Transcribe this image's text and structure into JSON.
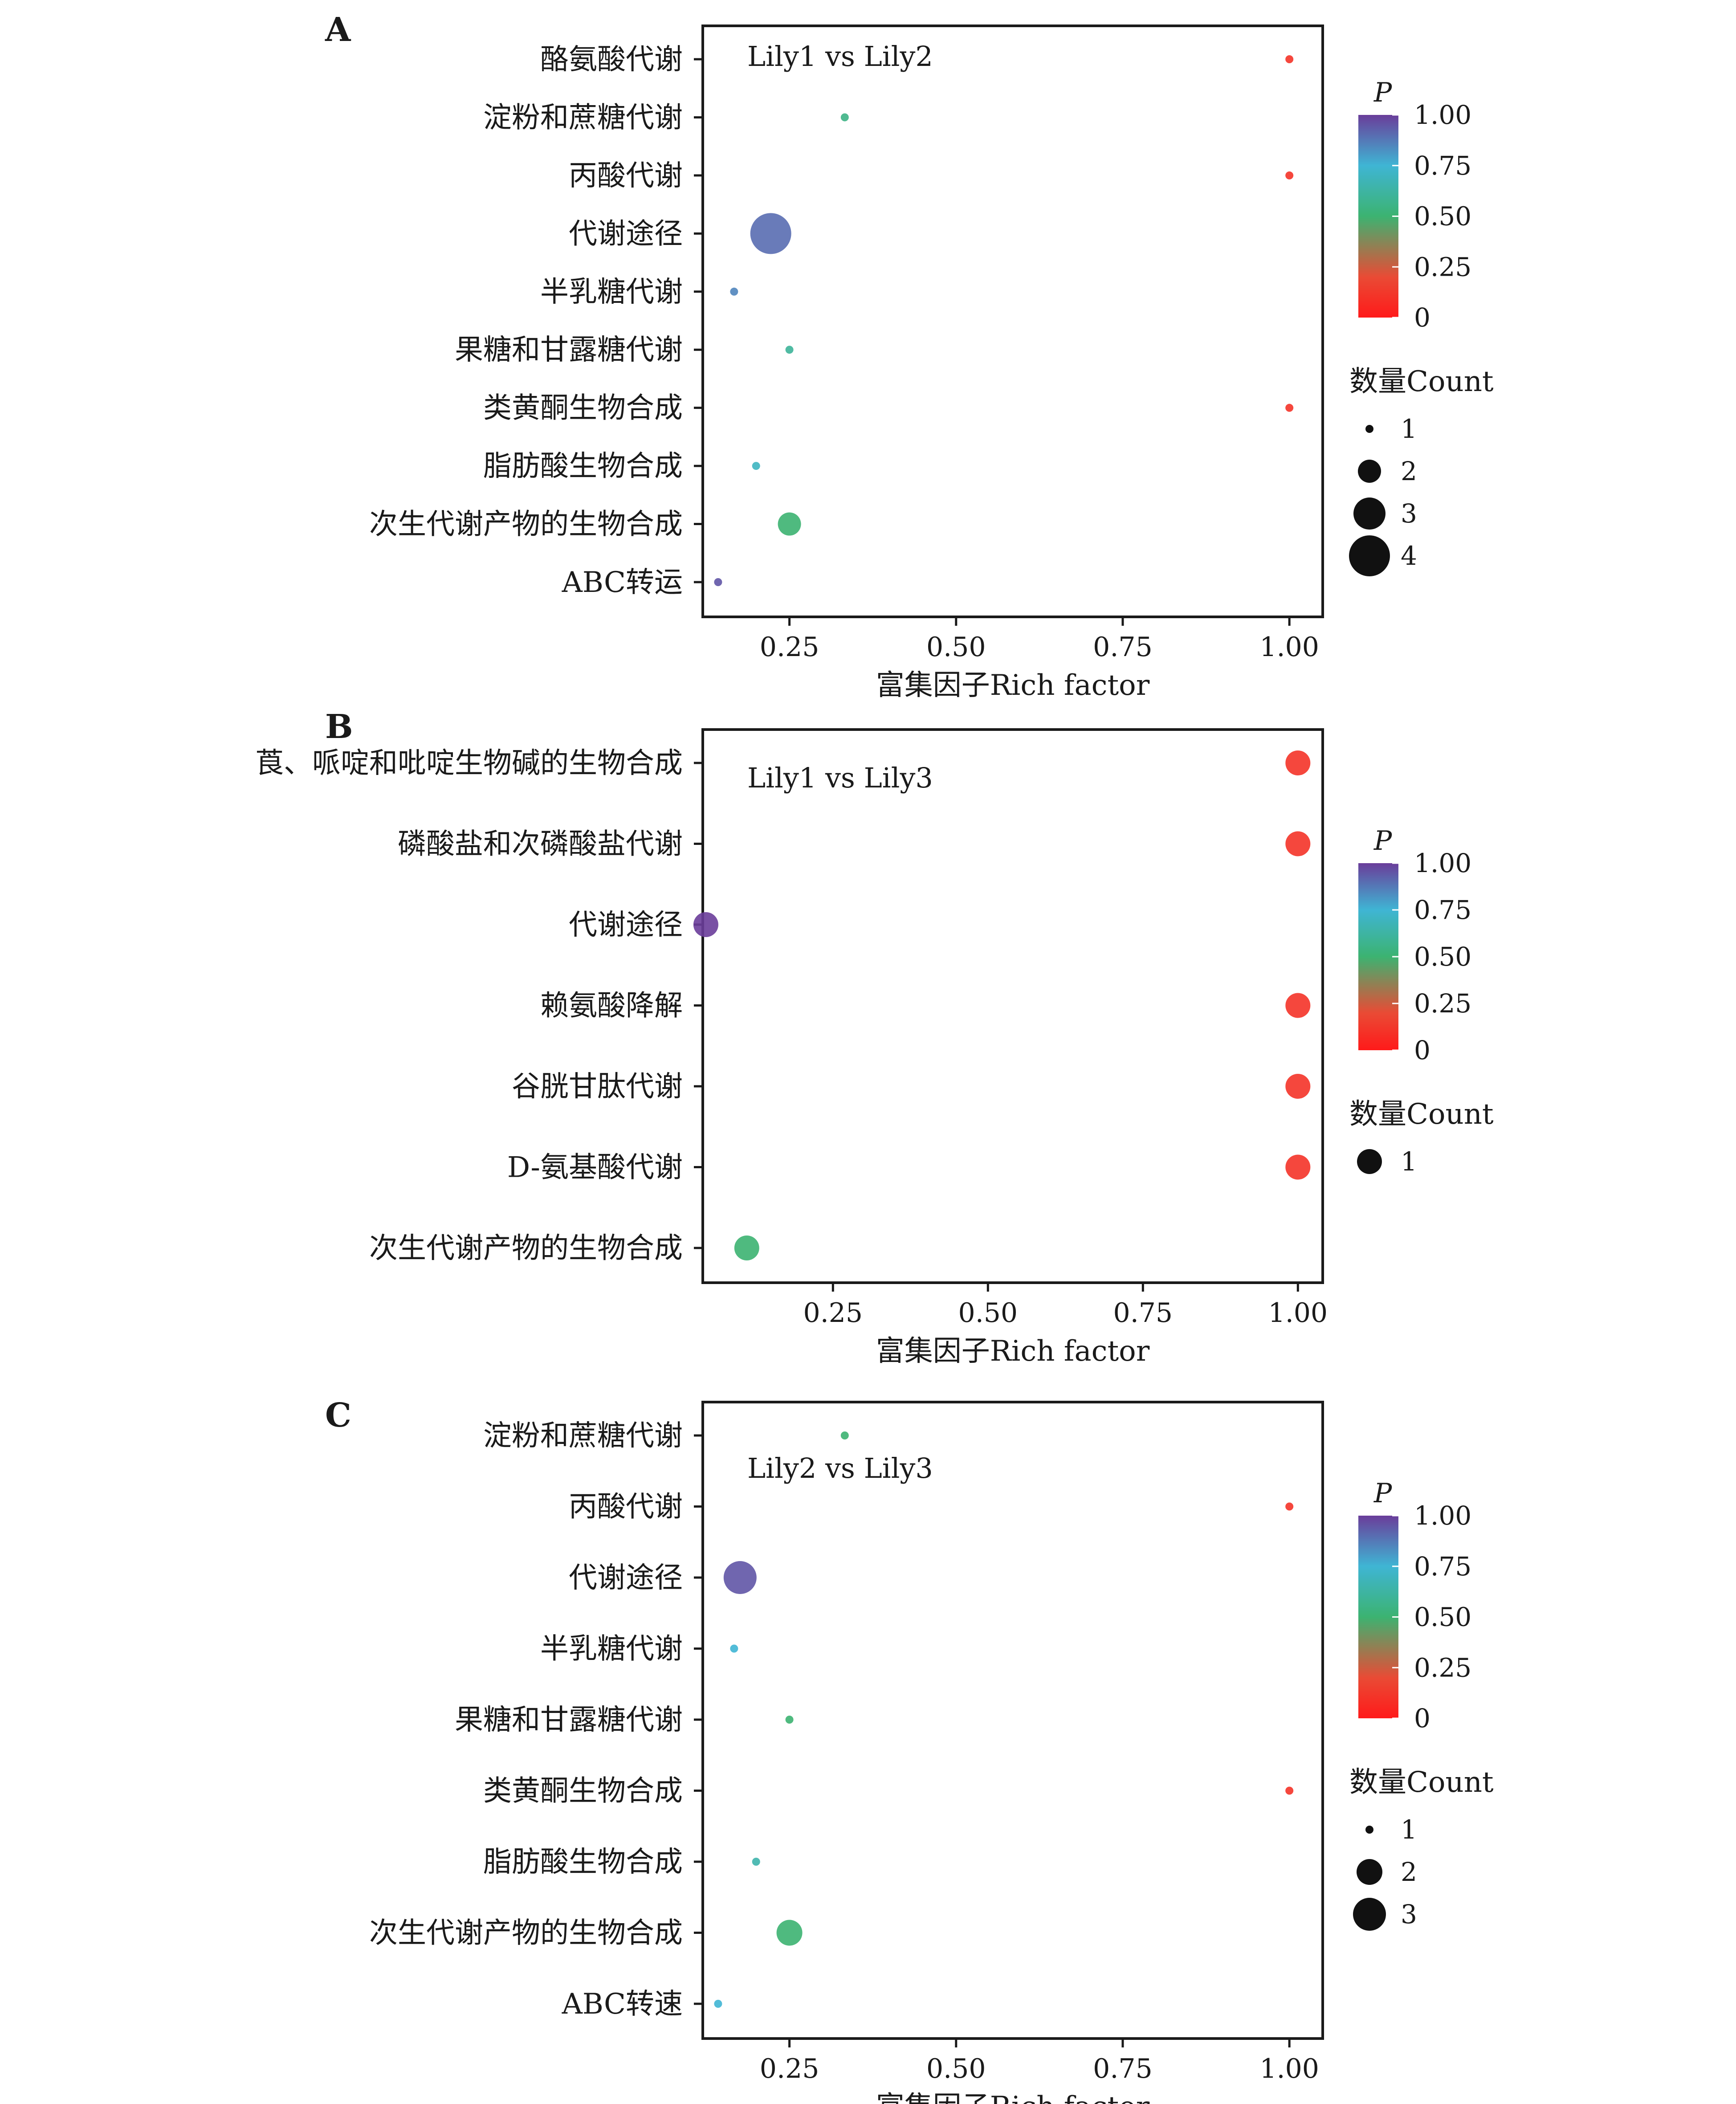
{
  "x_axis_title": "富集因子Rich factor",
  "colorbar": {
    "title": "P",
    "ticks": [
      "1.00",
      "0.75",
      "0.50",
      "0.25",
      "0"
    ],
    "colors": [
      "#6a3d9a",
      "#3fb5d4",
      "#3cb371",
      "#e94b35",
      "#ff1a1a"
    ]
  },
  "size_legend_title": "数量Count",
  "chart_data": [
    {
      "type": "scatter",
      "panel_label": "A",
      "title": "Lily1 vs Lily2",
      "xlabel": "富集因子Rich factor",
      "xlim": [
        0.12,
        1.05
      ],
      "xticks": [
        "0.25",
        "0.50",
        "0.75",
        "1.00"
      ],
      "categories": [
        "酪氨酸代谢",
        "淀粉和蔗糖代谢",
        "丙酸代谢",
        "代谢途径",
        "半乳糖代谢",
        "果糖和甘露糖代谢",
        "类黄酮生物合成",
        "脂肪酸生物合成",
        "次生代谢产物的生物合成",
        "ABC转运"
      ],
      "x": [
        1.0,
        0.333,
        1.0,
        0.222,
        0.167,
        0.25,
        1.0,
        0.2,
        0.25,
        0.143
      ],
      "count": [
        1,
        1,
        1,
        4,
        1,
        1,
        1,
        1,
        2,
        1
      ],
      "p": [
        0.1,
        0.55,
        0.1,
        0.9,
        0.85,
        0.6,
        0.1,
        0.7,
        0.5,
        0.95
      ],
      "size_legend": [
        "1",
        "2",
        "3",
        "4"
      ],
      "grid": false
    },
    {
      "type": "scatter",
      "panel_label": "B",
      "title": "Lily1 vs Lily3",
      "xlabel": "富集因子Rich factor",
      "xlim": [
        0.04,
        1.04
      ],
      "xticks": [
        "0.25",
        "0.50",
        "0.75",
        "1.00"
      ],
      "categories": [
        "莨、哌啶和吡啶生物碱的生物合成",
        "磷酸盐和次磷酸盐代谢",
        "代谢途径",
        "赖氨酸降解",
        "谷胱甘肽代谢",
        "D-氨基酸代谢",
        "次生代谢产物的生物合成"
      ],
      "x": [
        1.0,
        1.0,
        0.045,
        1.0,
        1.0,
        1.0,
        0.111
      ],
      "count": [
        1,
        1,
        1,
        1,
        1,
        1,
        1
      ],
      "p": [
        0.1,
        0.1,
        1.0,
        0.1,
        0.1,
        0.1,
        0.5
      ],
      "size_legend": [
        "1"
      ],
      "grid": false
    },
    {
      "type": "scatter",
      "panel_label": "C",
      "title": "Lily2 vs Lily3",
      "xlabel": "富集因子Rich factor",
      "xlim": [
        0.12,
        1.05
      ],
      "xticks": [
        "0.25",
        "0.50",
        "0.75",
        "1.00"
      ],
      "categories": [
        "淀粉和蔗糖代谢",
        "丙酸代谢",
        "代谢途径",
        "半乳糖代谢",
        "果糖和甘露糖代谢",
        "类黄酮生物合成",
        "脂肪酸生物合成",
        "次生代谢产物的生物合成",
        "ABC转速"
      ],
      "x": [
        0.333,
        1.0,
        0.176,
        0.167,
        0.25,
        1.0,
        0.2,
        0.25,
        0.143
      ],
      "count": [
        1,
        1,
        3,
        1,
        1,
        1,
        1,
        2,
        1
      ],
      "p": [
        0.5,
        0.1,
        0.95,
        0.75,
        0.5,
        0.1,
        0.65,
        0.5,
        0.75
      ],
      "size_legend": [
        "1",
        "2",
        "3"
      ],
      "grid": false
    }
  ]
}
